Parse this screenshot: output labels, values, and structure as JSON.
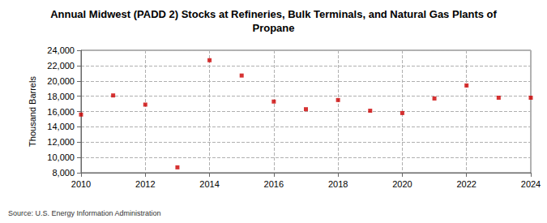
{
  "chart_data": {
    "type": "scatter",
    "title": "Annual Midwest (PADD 2) Stocks at Refineries, Bulk Terminals, and Natural Gas Plants of Propane",
    "y_label": "Thousand Barrels",
    "source": "Source: U.S. Energy Information Administration",
    "x": [
      2010,
      2011,
      2012,
      2013,
      2014,
      2015,
      2016,
      2017,
      2018,
      2019,
      2020,
      2021,
      2022,
      2023,
      2024
    ],
    "values": [
      15600,
      18100,
      16900,
      8700,
      22700,
      20700,
      17300,
      16300,
      17500,
      16100,
      15800,
      17700,
      19400,
      17800,
      17800
    ],
    "color": "#cc0000",
    "marker": "square",
    "xlim": [
      2010,
      2024
    ],
    "xticks": [
      2010,
      2012,
      2014,
      2016,
      2018,
      2020,
      2022,
      2024
    ],
    "ylim": [
      8000,
      24000
    ],
    "yticks": [
      {
        "value": 8000,
        "label": "8,000"
      },
      {
        "value": 10000,
        "label": "10,000"
      },
      {
        "value": 12000,
        "label": "12,000"
      },
      {
        "value": 14000,
        "label": "14,000"
      },
      {
        "value": 16000,
        "label": "16,000"
      },
      {
        "value": 18000,
        "label": "18,000"
      },
      {
        "value": 20000,
        "label": "20,000"
      },
      {
        "value": 22000,
        "label": "22,000"
      },
      {
        "value": 24000,
        "label": "24,000"
      }
    ],
    "grid": true
  }
}
